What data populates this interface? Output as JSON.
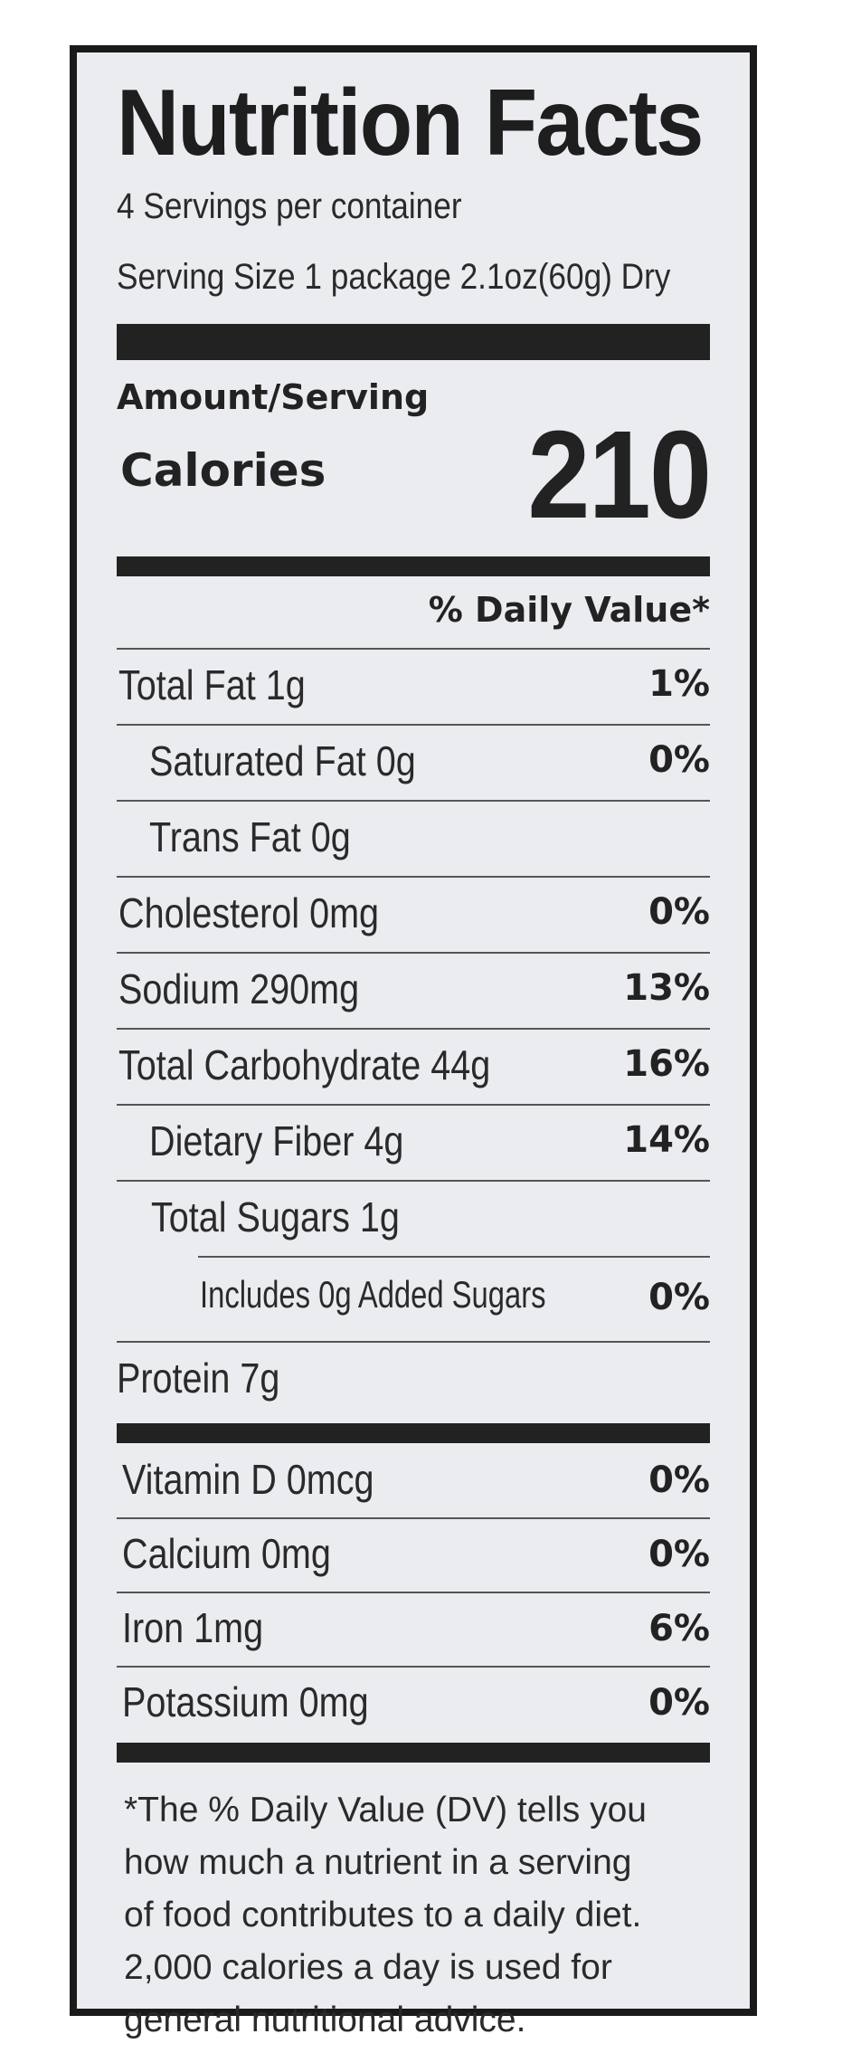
{
  "label": {
    "title": "Nutrition Facts",
    "servings_per_container": "4 Servings per container",
    "serving_size": "Serving Size 1 package 2.1oz(60g) Dry",
    "amount_per_serving": "Amount/Serving",
    "calories_label": "Calories",
    "calories_value": "210",
    "daily_value_header": "% Daily Value*",
    "nutrients": [
      {
        "name": "Total Fat 1g",
        "dv": "1%"
      },
      {
        "name": "Saturated Fat 0g",
        "dv": "0%"
      },
      {
        "name": "Trans Fat 0g",
        "dv": ""
      },
      {
        "name": "Cholesterol 0mg",
        "dv": "0%"
      },
      {
        "name": "Sodium 290mg",
        "dv": "13%"
      },
      {
        "name": "Total Carbohydrate 44g",
        "dv": "16%"
      },
      {
        "name": "Dietary Fiber 4g",
        "dv": "14%"
      },
      {
        "name": "Total Sugars 1g",
        "dv": ""
      },
      {
        "name": "Includes 0g Added Sugars",
        "dv": "0%"
      },
      {
        "name": "Protein 7g",
        "dv": ""
      }
    ],
    "vitamins": [
      {
        "name": "Vitamin D 0mcg",
        "dv": "0%"
      },
      {
        "name": "Calcium 0mg",
        "dv": "0%"
      },
      {
        "name": "Iron 1mg",
        "dv": "6%"
      },
      {
        "name": "Potassium 0mg",
        "dv": "0%"
      }
    ],
    "footnote_lines": [
      "*The % Daily Value (DV) tells you",
      "how much a nutrient in a serving",
      "of food contributes to a daily diet.",
      "2,000 calories a day is used for",
      "general nutritional advice."
    ]
  }
}
